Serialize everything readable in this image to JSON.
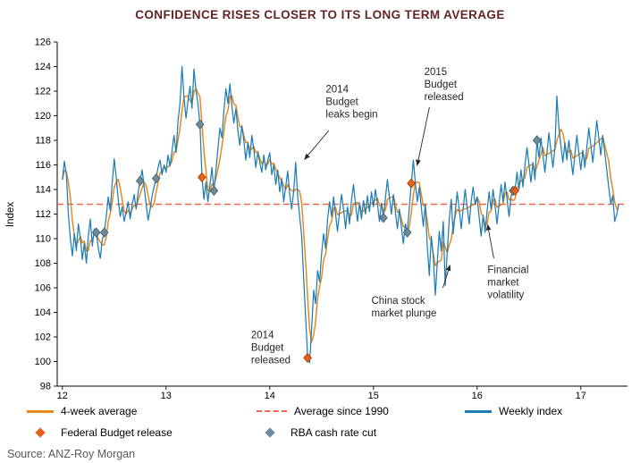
{
  "title": "CONFIDENCE RISES CLOSER TO ITS LONG TERM AVERAGE",
  "source": "Source: ANZ-Roy Morgan",
  "colors": {
    "title": "#632423",
    "weekly": "#1E7DB8",
    "four_week": "#E8891D",
    "long_term": "#F4664A",
    "budget": "#E8611B",
    "budget_stroke": "#A84708",
    "rba": "#6C8C9C",
    "rba_stroke": "#4A6878",
    "annotation": "#262626",
    "axis": "#000000",
    "source": "#595959"
  },
  "legend": {
    "row1": [
      {
        "label": "4-week average",
        "swatch": "line",
        "color": "#E8891D"
      },
      {
        "label": "Average since 1990",
        "swatch": "dashed",
        "color": "#F4664A"
      },
      {
        "label": "Weekly index",
        "swatch": "line",
        "color": "#1E7DB8"
      }
    ],
    "row2": [
      {
        "label": "Federal Budget release",
        "swatch": "diamond",
        "color": "#E8611B"
      },
      {
        "label": "RBA cash rate cut",
        "swatch": "diamond",
        "color": "#6C8C9C"
      }
    ]
  },
  "chart_data": {
    "type": "line",
    "title": "CONFIDENCE RISES CLOSER TO ITS LONG TERM AVERAGE",
    "xlabel": "",
    "ylabel": "Index",
    "ylim": [
      98,
      126
    ],
    "ytick_step": 2,
    "xlim": [
      11.95,
      17.45
    ],
    "xticks": [
      12,
      13,
      14,
      15,
      16,
      17
    ],
    "xtick_labels": [
      "12",
      "13",
      "14",
      "15",
      "16",
      "17"
    ],
    "grid": false,
    "legend_position": "bottom",
    "long_term_average": 112.8,
    "weekly": {
      "name": "Weekly index",
      "x_start": 12.0,
      "x_step": 0.0192307692,
      "values": [
        114.8,
        116.3,
        115.2,
        112.0,
        110.0,
        108.6,
        110.4,
        109.0,
        111.2,
        110.1,
        108.3,
        109.6,
        108.0,
        110.2,
        111.6,
        109.4,
        110.8,
        110.5,
        109.2,
        108.4,
        109.9,
        110.5,
        111.8,
        113.4,
        112.3,
        114.6,
        116.5,
        115.0,
        113.2,
        111.8,
        112.6,
        111.4,
        112.2,
        113.0,
        111.6,
        112.8,
        113.6,
        112.4,
        113.8,
        114.7,
        115.6,
        114.2,
        112.8,
        111.5,
        112.4,
        113.5,
        114.2,
        114.9,
        115.8,
        116.4,
        115.2,
        116.0,
        115.4,
        116.8,
        115.9,
        117.2,
        118.4,
        117.0,
        119.6,
        121.0,
        124.0,
        121.5,
        119.8,
        121.2,
        122.4,
        120.6,
        123.8,
        122.0,
        121.0,
        119.3,
        115.0,
        113.2,
        114.6,
        113.0,
        114.4,
        115.8,
        113.9,
        115.6,
        117.3,
        119.0,
        118.2,
        120.4,
        122.2,
        121.0,
        122.6,
        120.8,
        119.4,
        120.6,
        118.8,
        117.6,
        119.2,
        118.0,
        116.4,
        117.8,
        116.6,
        118.4,
        117.2,
        115.8,
        117.0,
        116.2,
        115.4,
        116.8,
        115.6,
        116.4,
        117.0,
        115.2,
        116.0,
        114.4,
        115.6,
        113.8,
        114.9,
        113.0,
        114.2,
        115.5,
        113.6,
        112.4,
        113.9,
        116.2,
        113.5,
        111.8,
        110.2,
        106.8,
        103.5,
        100.3,
        99.9,
        102.6,
        105.8,
        104.7,
        107.4,
        106.5,
        108.8,
        110.4,
        109.2,
        111.6,
        113.0,
        111.8,
        113.4,
        112.0,
        110.6,
        112.2,
        113.6,
        112.4,
        110.8,
        112.6,
        111.2,
        113.2,
        114.4,
        112.8,
        111.4,
        112.9,
        111.6,
        113.1,
        112.0,
        113.5,
        112.2,
        113.8,
        112.6,
        114.0,
        112.8,
        111.4,
        112.9,
        111.7,
        113.3,
        114.8,
        113.4,
        112.0,
        113.6,
        112.2,
        110.8,
        112.4,
        111.0,
        109.6,
        111.2,
        110.5,
        112.6,
        114.5,
        116.4,
        114.6,
        113.0,
        114.2,
        112.6,
        111.0,
        112.8,
        109.4,
        107.0,
        110.2,
        108.6,
        105.4,
        108.0,
        110.6,
        109.0,
        111.4,
        106.2,
        108.8,
        111.6,
        113.2,
        110.4,
        112.2,
        113.8,
        112.4,
        110.8,
        112.5,
        114.0,
        112.6,
        111.2,
        113.0,
        114.2,
        112.8,
        113.4,
        111.8,
        110.2,
        111.9,
        110.5,
        112.3,
        113.8,
        112.4,
        114.0,
        112.6,
        111.2,
        112.8,
        114.4,
        113.0,
        114.6,
        113.2,
        111.8,
        113.4,
        113.9,
        113.9,
        115.4,
        114.0,
        115.6,
        114.2,
        116.0,
        117.4,
        116.0,
        114.6,
        116.2,
        114.8,
        118.0,
        116.6,
        118.2,
        116.8,
        115.4,
        117.0,
        118.6,
        117.2,
        115.8,
        117.4,
        121.6,
        119.0,
        117.6,
        116.2,
        117.8,
        116.4,
        118.0,
        116.6,
        115.2,
        116.8,
        118.4,
        117.0,
        115.6,
        117.2,
        115.8,
        117.4,
        119.0,
        117.6,
        116.2,
        117.8,
        119.6,
        118.2,
        116.8,
        118.4,
        117.0,
        115.6,
        114.2,
        112.8,
        113.5,
        111.4,
        112.0,
        112.8
      ]
    },
    "four_week_average": {
      "name": "4-week average",
      "derived_from": "weekly",
      "window": 4
    },
    "markers": {
      "federal_budget_release": [
        {
          "x": 13.346,
          "y": 115.0
        },
        {
          "x": 14.365,
          "y": 100.3
        },
        {
          "x": 15.365,
          "y": 114.5
        },
        {
          "x": 16.365,
          "y": 113.9
        }
      ],
      "rba_cash_rate_cut": [
        {
          "x": 12.327,
          "y": 110.5
        },
        {
          "x": 12.404,
          "y": 110.5
        },
        {
          "x": 12.75,
          "y": 114.7
        },
        {
          "x": 12.904,
          "y": 114.9
        },
        {
          "x": 13.327,
          "y": 119.3
        },
        {
          "x": 13.462,
          "y": 113.9
        },
        {
          "x": 15.096,
          "y": 111.7
        },
        {
          "x": 15.327,
          "y": 110.5
        },
        {
          "x": 16.346,
          "y": 113.9
        },
        {
          "x": 16.577,
          "y": 118.0
        }
      ]
    },
    "annotations": [
      {
        "name": "2014-budget-leaks",
        "lines": [
          "2014",
          "Budget",
          "leaks begin"
        ],
        "x": 14.54,
        "y": 121.9,
        "arrow": {
          "x1": 14.57,
          "y1": 118.8,
          "x2": 14.33,
          "y2": 116.4
        }
      },
      {
        "name": "2015-budget-released",
        "lines": [
          "2015",
          "Budget",
          "released"
        ],
        "x": 15.49,
        "y": 123.3,
        "arrow": {
          "x1": 15.54,
          "y1": 120.7,
          "x2": 15.42,
          "y2": 115.9
        }
      },
      {
        "name": "2014-budget-released",
        "lines": [
          "2014",
          "Budget",
          "released"
        ],
        "x": 13.82,
        "y": 101.9,
        "arrow": null
      },
      {
        "name": "china-stock-plunge",
        "lines": [
          "China stock",
          "market plunge"
        ],
        "x": 14.98,
        "y": 104.7,
        "arrow": {
          "x1": 15.67,
          "y1": 106.0,
          "x2": 15.74,
          "y2": 107.9
        }
      },
      {
        "name": "financial-market-volatility",
        "lines": [
          "Financial",
          "market",
          "volatility"
        ],
        "x": 16.1,
        "y": 107.2,
        "arrow": {
          "x1": 16.16,
          "y1": 108.4,
          "x2": 16.1,
          "y2": 111.2
        }
      }
    ]
  }
}
